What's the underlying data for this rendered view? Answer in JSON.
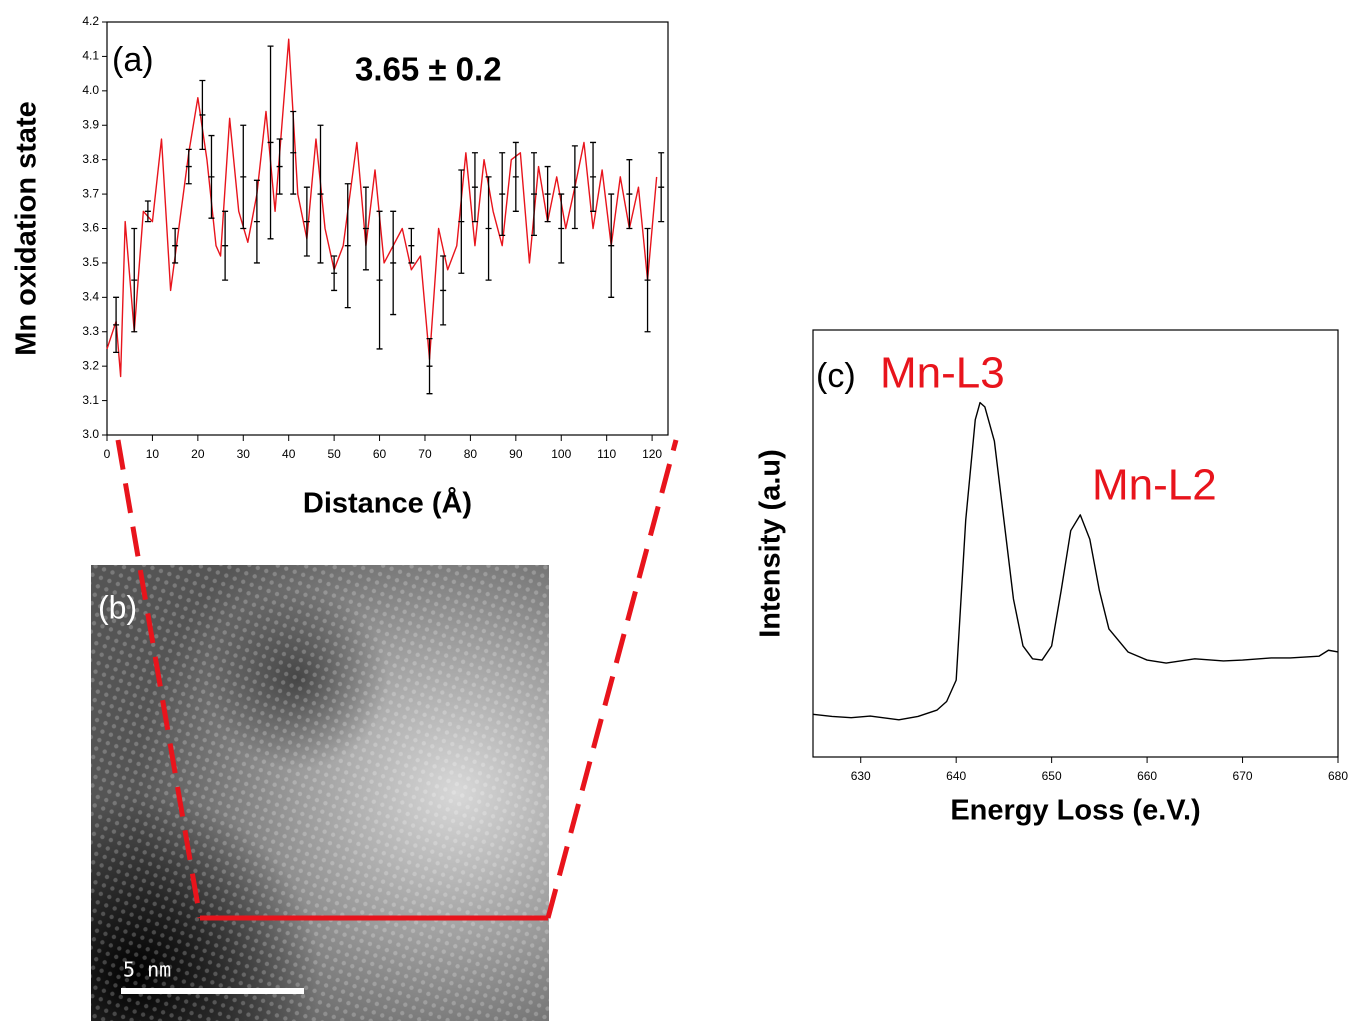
{
  "chart_data": [
    {
      "type": "line",
      "xlabel": "Distance (Å)",
      "ylabel": "Mn oxidation state",
      "annotations": [
        "(a)",
        "3.65 ± 0.2"
      ],
      "xlim": [
        0,
        123.5
      ],
      "ylim": [
        3.0,
        4.2
      ],
      "xticks": [
        0,
        10,
        20,
        30,
        40,
        50,
        60,
        70,
        80,
        90,
        100,
        110,
        120
      ],
      "yticks": [
        {
          "value": 3.0,
          "label": "3.0"
        },
        3.1,
        3.2,
        3.3,
        3.4,
        3.5,
        3.6,
        3.7,
        3.8,
        3.9,
        {
          "value": 4.0,
          "label": "4.0"
        },
        4.1,
        4.2
      ],
      "series": [
        {
          "color": "#e8141c",
          "x": [
            0,
            2,
            3,
            4,
            6,
            8,
            10,
            12,
            14,
            16,
            18,
            20,
            22,
            24,
            25,
            27,
            29,
            31,
            33,
            35,
            37,
            40,
            42,
            44,
            46,
            48,
            50,
            52,
            55,
            57,
            59,
            61,
            63,
            65,
            67,
            69,
            71,
            73,
            75,
            77,
            79,
            81,
            83,
            85,
            87,
            89,
            91,
            93,
            95,
            97,
            99,
            101,
            103,
            105,
            107,
            109,
            111,
            113,
            115,
            117,
            119,
            121
          ],
          "values": [
            3.25,
            3.33,
            3.17,
            3.62,
            3.3,
            3.65,
            3.62,
            3.86,
            3.42,
            3.62,
            3.82,
            3.98,
            3.8,
            3.55,
            3.52,
            3.92,
            3.65,
            3.56,
            3.7,
            3.94,
            3.65,
            4.15,
            3.7,
            3.57,
            3.86,
            3.6,
            3.48,
            3.55,
            3.85,
            3.55,
            3.77,
            3.5,
            3.55,
            3.6,
            3.48,
            3.52,
            3.22,
            3.6,
            3.48,
            3.55,
            3.82,
            3.55,
            3.8,
            3.65,
            3.55,
            3.8,
            3.82,
            3.5,
            3.78,
            3.62,
            3.75,
            3.6,
            3.72,
            3.85,
            3.6,
            3.77,
            3.55,
            3.75,
            3.6,
            3.72,
            3.45,
            3.75
          ]
        },
        {
          "color": "#000000",
          "x": [
            2,
            6,
            9,
            15,
            18,
            21,
            23,
            26,
            30,
            33,
            36,
            38,
            41,
            44,
            47,
            50,
            53,
            57,
            60,
            63,
            67,
            71,
            74,
            78,
            81,
            84,
            87,
            90,
            94,
            97,
            100,
            103,
            107,
            111,
            115,
            119,
            122
          ],
          "values": [
            3.32,
            3.45,
            3.65,
            3.55,
            3.78,
            3.93,
            3.75,
            3.55,
            3.75,
            3.62,
            3.85,
            3.78,
            3.82,
            3.62,
            3.7,
            3.47,
            3.55,
            3.6,
            3.45,
            3.5,
            3.55,
            3.2,
            3.42,
            3.62,
            3.72,
            3.6,
            3.7,
            3.75,
            3.7,
            3.7,
            3.6,
            3.72,
            3.75,
            3.55,
            3.7,
            3.45,
            3.72
          ],
          "errors": [
            0.08,
            0.15,
            0.03,
            0.05,
            0.05,
            0.1,
            0.12,
            0.1,
            0.15,
            0.12,
            0.28,
            0.08,
            0.12,
            0.1,
            0.2,
            0.05,
            0.18,
            0.12,
            0.2,
            0.15,
            0.05,
            0.08,
            0.1,
            0.15,
            0.1,
            0.15,
            0.12,
            0.1,
            0.12,
            0.08,
            0.1,
            0.12,
            0.1,
            0.15,
            0.1,
            0.15,
            0.1
          ]
        }
      ]
    },
    {
      "type": "line",
      "xlabel": "Energy Loss (e.V.)",
      "ylabel": "Intensity (a.u)",
      "annotations": [
        "(c)",
        "Mn-L3",
        "Mn-L2"
      ],
      "xlim": [
        625,
        680
      ],
      "ylim": [
        0,
        1
      ],
      "xticks": [
        630,
        640,
        650,
        660,
        670,
        680
      ],
      "series": [
        {
          "color": "#000000",
          "x": [
            625,
            627,
            629,
            631,
            633,
            634,
            636,
            638,
            639,
            640,
            641,
            642,
            642.5,
            643,
            644,
            645,
            646,
            647,
            648,
            649,
            650,
            651,
            652,
            653,
            654,
            655,
            656,
            658,
            660,
            662,
            665,
            668,
            670,
            673,
            675,
            678,
            679,
            680
          ],
          "values": [
            0.1,
            0.095,
            0.092,
            0.096,
            0.09,
            0.087,
            0.095,
            0.11,
            0.13,
            0.18,
            0.555,
            0.79,
            0.83,
            0.82,
            0.74,
            0.555,
            0.37,
            0.26,
            0.23,
            0.227,
            0.26,
            0.39,
            0.53,
            0.567,
            0.51,
            0.39,
            0.3,
            0.246,
            0.227,
            0.22,
            0.23,
            0.225,
            0.227,
            0.232,
            0.232,
            0.236,
            0.25,
            0.246
          ]
        }
      ]
    }
  ],
  "image": {
    "label": "(b)",
    "scale_bar": "5 nm"
  }
}
